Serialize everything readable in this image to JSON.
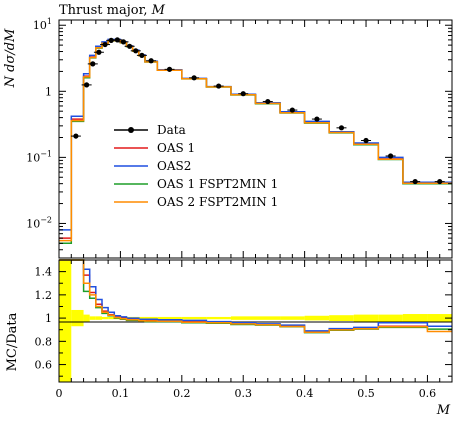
{
  "chart_data": [
    {
      "type": "line",
      "panel": "main",
      "title": "Thrust major, M",
      "title_text": "Thrust major, ",
      "title_var": "M",
      "ylabel": "N dσ/dM",
      "ylabel_prefix": "N dσ/d",
      "ylabel_var": "M",
      "yscale": "log",
      "xlim": [
        0,
        0.64
      ],
      "ylim": [
        0.003,
        12
      ],
      "ytick_labels": [
        {
          "value": 10,
          "base": "10",
          "exp": "1"
        },
        {
          "value": 1,
          "base": "1",
          "exp": ""
        },
        {
          "value": 0.1,
          "base": "10",
          "exp": "−1"
        },
        {
          "value": 0.01,
          "base": "10",
          "exp": "−2"
        }
      ],
      "bin_edges": [
        0,
        0.02,
        0.04,
        0.05,
        0.06,
        0.07,
        0.08,
        0.09,
        0.1,
        0.11,
        0.12,
        0.13,
        0.14,
        0.16,
        0.2,
        0.24,
        0.28,
        0.32,
        0.36,
        0.4,
        0.44,
        0.48,
        0.52,
        0.56,
        0.6,
        0.64
      ],
      "legend_position": "center-left",
      "data": {
        "name": "Data",
        "color": "#000000",
        "x": [
          0.0275,
          0.045,
          0.055,
          0.065,
          0.075,
          0.085,
          0.095,
          0.105,
          0.115,
          0.125,
          0.135,
          0.15,
          0.18,
          0.22,
          0.26,
          0.3,
          0.34,
          0.38,
          0.42,
          0.46,
          0.5,
          0.54,
          0.58,
          0.62
        ],
        "y": [
          0.21,
          1.25,
          2.6,
          3.9,
          5.1,
          5.9,
          6.0,
          5.6,
          4.8,
          4.1,
          3.5,
          2.9,
          2.15,
          1.6,
          1.2,
          0.92,
          0.7,
          0.52,
          0.38,
          0.28,
          0.18,
          0.105,
          0.043,
          0.043
        ]
      },
      "series": [
        {
          "name": "OAS 1",
          "color": "#e31a1c",
          "values": [
            0.006,
            0.38,
            1.7,
            3.3,
            4.6,
            5.4,
            5.9,
            6.0,
            5.5,
            4.8,
            4.1,
            3.5,
            2.8,
            2.1,
            1.55,
            1.17,
            0.89,
            0.66,
            0.48,
            0.34,
            0.24,
            0.16,
            0.095,
            0.041,
            0.041
          ]
        },
        {
          "name": "OAS2",
          "color": "#1f4fe0",
          "values": [
            0.008,
            0.42,
            1.85,
            3.5,
            4.8,
            5.6,
            6.1,
            6.1,
            5.6,
            4.9,
            4.2,
            3.55,
            2.85,
            2.12,
            1.57,
            1.18,
            0.9,
            0.67,
            0.49,
            0.35,
            0.245,
            0.165,
            0.1,
            0.042,
            0.042
          ]
        },
        {
          "name": "OAS 1 FSPT2MIN 1",
          "color": "#1e9e28",
          "values": [
            0.005,
            0.35,
            1.6,
            3.2,
            4.5,
            5.3,
            5.8,
            5.9,
            5.4,
            4.75,
            4.05,
            3.45,
            2.78,
            2.08,
            1.54,
            1.16,
            0.88,
            0.65,
            0.47,
            0.33,
            0.235,
            0.155,
            0.093,
            0.04,
            0.04
          ]
        },
        {
          "name": "OAS 2 FSPT2MIN 1",
          "color": "#ff8c00",
          "values": [
            0.0055,
            0.36,
            1.65,
            3.25,
            4.55,
            5.35,
            5.85,
            5.95,
            5.45,
            4.78,
            4.08,
            3.47,
            2.79,
            2.09,
            1.545,
            1.165,
            0.885,
            0.655,
            0.475,
            0.335,
            0.238,
            0.158,
            0.094,
            0.0405,
            0.0405
          ]
        }
      ]
    },
    {
      "type": "line",
      "panel": "ratio",
      "ylabel": "MC/Data",
      "xlabel": "M",
      "xlim": [
        0,
        0.64
      ],
      "ylim": [
        0.45,
        1.5
      ],
      "yticks": [
        0.6,
        0.8,
        1,
        1.2,
        1.4
      ],
      "ytick_labels": [
        "0.6",
        "0.8",
        "1",
        "1.2",
        "1.4"
      ],
      "xticks": [
        0,
        0.1,
        0.2,
        0.3,
        0.4,
        0.5,
        0.6
      ],
      "xtick_labels": [
        "0",
        "0.1",
        "0.2",
        "0.3",
        "0.4",
        "0.5",
        "0.6"
      ],
      "uncertainty_band": {
        "color": "#ffff00",
        "lo": [
          0.45,
          0.93,
          0.97,
          0.985,
          0.985,
          0.99,
          0.99,
          0.99,
          0.99,
          0.99,
          0.99,
          0.99,
          0.99,
          0.99,
          0.99,
          0.99,
          0.985,
          0.985,
          0.985,
          0.98,
          0.975,
          0.97,
          0.97,
          0.965,
          0.965
        ],
        "hi": [
          1.5,
          1.07,
          1.03,
          1.015,
          1.015,
          1.01,
          1.01,
          1.01,
          1.01,
          1.01,
          1.01,
          1.01,
          1.01,
          1.01,
          1.01,
          1.01,
          1.015,
          1.015,
          1.015,
          1.02,
          1.025,
          1.03,
          1.03,
          1.035,
          1.035
        ]
      },
      "series": [
        {
          "name": "OAS 1",
          "color": "#e31a1c",
          "values": [
            1.5,
            1.5,
            1.37,
            1.22,
            1.12,
            1.06,
            1.03,
            1.01,
            1.0,
            0.99,
            0.99,
            0.98,
            0.98,
            0.98,
            0.97,
            0.965,
            0.955,
            0.945,
            0.93,
            0.88,
            0.9,
            0.91,
            0.93,
            0.93,
            0.93
          ]
        },
        {
          "name": "OAS2",
          "color": "#1f4fe0",
          "values": [
            1.5,
            1.5,
            1.42,
            1.27,
            1.16,
            1.09,
            1.05,
            1.02,
            1.01,
            1.0,
            1.0,
            0.99,
            0.99,
            0.985,
            0.98,
            0.97,
            0.96,
            0.95,
            0.94,
            0.89,
            0.91,
            0.92,
            0.96,
            0.96,
            0.93
          ]
        },
        {
          "name": "OAS 1 FSPT2MIN 1",
          "color": "#1e9e28",
          "values": [
            1.5,
            1.5,
            1.23,
            1.17,
            1.09,
            1.04,
            1.02,
            1.0,
            0.99,
            0.98,
            0.98,
            0.975,
            0.97,
            0.97,
            0.96,
            0.955,
            0.945,
            0.94,
            0.925,
            0.875,
            0.895,
            0.905,
            0.92,
            0.92,
            0.905
          ]
        },
        {
          "name": "OAS 2 FSPT2MIN 1",
          "color": "#ff8c00",
          "values": [
            1.5,
            1.5,
            1.3,
            1.2,
            1.1,
            1.05,
            1.025,
            1.005,
            0.995,
            0.985,
            0.985,
            0.978,
            0.975,
            0.972,
            0.965,
            0.96,
            0.95,
            0.942,
            0.928,
            0.878,
            0.898,
            0.908,
            0.925,
            0.925,
            0.885
          ]
        }
      ]
    }
  ]
}
